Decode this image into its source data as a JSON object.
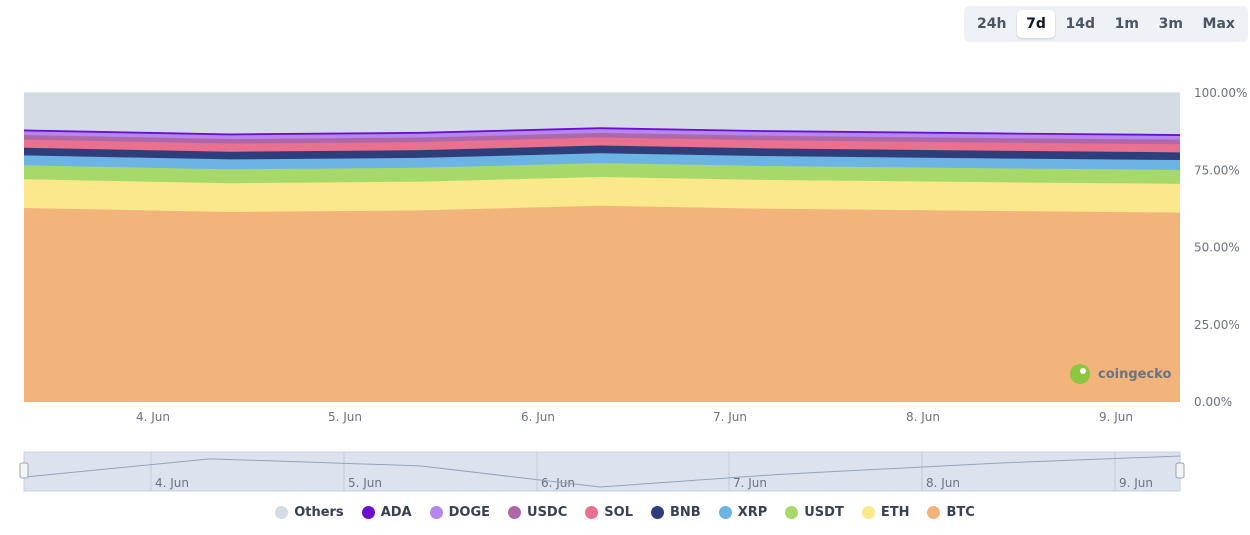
{
  "range_selector": {
    "options": [
      "24h",
      "7d",
      "14d",
      "1m",
      "3m",
      "Max"
    ],
    "active": "7d"
  },
  "watermark": "coingecko",
  "chart_data": {
    "type": "area",
    "stacked": true,
    "x": [
      "3 Jun 12:00",
      "4 Jun 12:00",
      "5 Jun 12:00",
      "6 Jun 08:00",
      "7 Jun 00:00",
      "8 Jun 12:00",
      "9 Jun 12:00"
    ],
    "x_tick_labels": [
      "4. Jun",
      "5. Jun",
      "6. Jun",
      "7. Jun",
      "8. Jun",
      "9. Jun"
    ],
    "ylim": [
      0,
      100
    ],
    "y_tick_labels": [
      "0.00%",
      "25.00%",
      "50.00%",
      "75.00%",
      "100.00%"
    ],
    "series": [
      {
        "name": "BTC",
        "color": "#f2b47a",
        "values": [
          62.8,
          61.5,
          62.0,
          63.5,
          62.6,
          61.8,
          61.3
        ]
      },
      {
        "name": "ETH",
        "color": "#fbe88a",
        "values": [
          9.3,
          9.3,
          9.3,
          9.3,
          9.3,
          9.3,
          9.3
        ]
      },
      {
        "name": "USDT",
        "color": "#a6d96a",
        "values": [
          4.5,
          4.5,
          4.5,
          4.5,
          4.5,
          4.5,
          4.5
        ]
      },
      {
        "name": "XRP",
        "color": "#6cb4e4",
        "values": [
          3.2,
          3.2,
          3.2,
          3.2,
          3.2,
          3.2,
          3.2
        ]
      },
      {
        "name": "BNB",
        "color": "#2d3e7a",
        "values": [
          2.5,
          2.5,
          2.5,
          2.5,
          2.5,
          2.5,
          2.5
        ]
      },
      {
        "name": "SOL",
        "color": "#e9708e",
        "values": [
          2.6,
          2.6,
          2.6,
          2.6,
          2.6,
          2.6,
          2.6
        ]
      },
      {
        "name": "USDC",
        "color": "#b067a8",
        "values": [
          1.5,
          1.5,
          1.5,
          1.5,
          1.5,
          1.5,
          1.5
        ]
      },
      {
        "name": "DOGE",
        "color": "#b586ee",
        "values": [
          1.2,
          1.2,
          1.2,
          1.2,
          1.2,
          1.2,
          1.2
        ]
      },
      {
        "name": "ADA",
        "color": "#6a0fd0",
        "values": [
          0.6,
          0.6,
          0.6,
          0.6,
          0.6,
          0.6,
          0.6
        ]
      },
      {
        "name": "Others",
        "color": "#d5dbe5",
        "values": [
          11.8,
          13.1,
          12.6,
          11.1,
          12.0,
          12.8,
          13.3
        ]
      }
    ],
    "legend": [
      "Others",
      "ADA",
      "DOGE",
      "USDC",
      "SOL",
      "BNB",
      "XRP",
      "USDT",
      "ETH",
      "BTC"
    ],
    "legend_position": "bottom",
    "navigator": {
      "x_tick_labels": [
        "4. Jun",
        "5. Jun",
        "6. Jun",
        "7. Jun",
        "8. Jun",
        "9. Jun"
      ]
    }
  }
}
